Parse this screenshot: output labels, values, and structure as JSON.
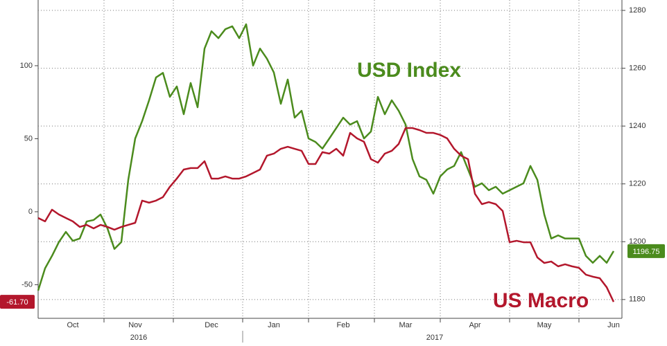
{
  "chart_data": {
    "type": "line",
    "categories": [
      null,
      null,
      null,
      null,
      null,
      "Oct",
      null,
      null,
      null,
      null,
      null,
      null,
      null,
      null,
      "Nov",
      null,
      null,
      null,
      null,
      null,
      null,
      null,
      null,
      null,
      null,
      "Dec",
      null,
      null,
      null,
      null,
      null,
      null,
      null,
      null,
      "Jan",
      null,
      null,
      null,
      null,
      null,
      null,
      null,
      null,
      null,
      "Feb",
      null,
      null,
      null,
      null,
      null,
      null,
      null,
      null,
      "Mar",
      null,
      null,
      null,
      null,
      null,
      null,
      null,
      null,
      null,
      "Apr",
      null,
      null,
      null,
      null,
      null,
      null,
      null,
      null,
      null,
      "May",
      null,
      null,
      null,
      null,
      null,
      null,
      null,
      null,
      null,
      "Jun"
    ],
    "years": [
      "2016",
      "2017"
    ],
    "series": [
      {
        "name": "USD Index",
        "color": "#4b8b1d",
        "axis": "y2",
        "values": [
          1183.1,
          1190.8,
          1195.1,
          1199.9,
          1203.4,
          1200.3,
          1201.1,
          1207.0,
          1207.5,
          1209.4,
          1204.6,
          1197.5,
          1199.9,
          1221.4,
          1235.7,
          1241.7,
          1248.9,
          1256.8,
          1258.4,
          1250.1,
          1253.7,
          1244.1,
          1254.9,
          1246.5,
          1266.8,
          1272.8,
          1270.4,
          1273.5,
          1274.5,
          1270.4,
          1275.2,
          1260.9,
          1266.8,
          1263.3,
          1258.5,
          1247.7,
          1256.1,
          1242.9,
          1245.3,
          1235.7,
          1234.5,
          1232.2,
          1235.7,
          1239.3,
          1242.9,
          1240.5,
          1241.7,
          1235.7,
          1238.1,
          1250.1,
          1244.1,
          1248.9,
          1245.3,
          1240.5,
          1228.6,
          1222.6,
          1221.4,
          1216.6,
          1222.6,
          1225.0,
          1226.2,
          1231.0,
          1225.0,
          1219.0,
          1220.2,
          1217.8,
          1219.0,
          1216.6,
          1217.8,
          1219.0,
          1220.2,
          1226.2,
          1221.4,
          1209.4,
          1201.1,
          1202.2,
          1201.1,
          1201.1,
          1201.1,
          1195.1,
          1192.7,
          1195.1,
          1192.7,
          1196.75
        ],
        "value_labels": [
          null,
          null,
          null,
          null,
          null,
          null,
          null,
          null,
          null,
          null,
          null,
          null,
          null,
          null,
          null,
          null,
          null,
          null,
          null,
          null,
          null,
          null,
          null,
          null,
          null,
          null,
          null,
          null,
          null,
          null,
          null,
          null,
          null,
          null,
          null,
          null,
          null,
          null,
          null,
          null,
          null,
          null,
          null,
          null,
          null,
          null,
          null,
          null,
          null,
          null,
          null,
          null,
          null,
          null,
          null,
          null,
          null,
          null,
          null,
          null,
          null,
          null,
          null,
          null,
          null,
          null,
          null,
          null,
          null,
          null,
          null,
          null,
          null,
          null,
          null,
          null,
          null,
          null,
          null,
          null,
          null,
          null,
          null,
          "1196.75"
        ]
      },
      {
        "name": "US Macro",
        "color": "#b3172c",
        "values": [
          -4.3,
          -6.6,
          1.4,
          -1.9,
          -4.3,
          -6.6,
          -10.4,
          -9.0,
          -11.4,
          -9.0,
          -10.4,
          -12.3,
          -10.4,
          -9.0,
          -7.6,
          7.6,
          6.2,
          7.6,
          10.0,
          17.1,
          22.7,
          28.9,
          29.9,
          29.9,
          34.6,
          22.7,
          22.7,
          24.2,
          22.7,
          22.7,
          24.2,
          26.5,
          28.9,
          38.4,
          39.8,
          43.1,
          44.5,
          43.1,
          41.7,
          32.7,
          32.7,
          40.8,
          39.8,
          43.1,
          38.4,
          54.0,
          50.2,
          47.9,
          36.0,
          33.6,
          39.8,
          41.7,
          46.4,
          57.3,
          57.3,
          55.9,
          54.0,
          54.0,
          52.6,
          50.2,
          43.1,
          38.4,
          36.0,
          12.3,
          5.2,
          6.6,
          5.2,
          0.5,
          -20.9,
          -19.9,
          -20.9,
          -20.9,
          -31.3,
          -35.1,
          -34.1,
          -37.4,
          -36.0,
          -37.4,
          -38.4,
          -43.1,
          -44.5,
          -45.5,
          -51.7,
          -61.7
        ],
        "value_labels": [
          null,
          null,
          null,
          null,
          null,
          null,
          null,
          null,
          null,
          null,
          null,
          null,
          null,
          null,
          null,
          null,
          null,
          null,
          null,
          null,
          null,
          null,
          null,
          null,
          null,
          null,
          null,
          null,
          null,
          null,
          null,
          null,
          null,
          null,
          null,
          null,
          null,
          null,
          null,
          null,
          null,
          null,
          null,
          null,
          null,
          null,
          null,
          null,
          null,
          null,
          null,
          null,
          null,
          null,
          null,
          null,
          null,
          null,
          null,
          null,
          null,
          null,
          null,
          null,
          null,
          null,
          null,
          null,
          null,
          null,
          null,
          null,
          null,
          null,
          null,
          null,
          null,
          null,
          null,
          null,
          null,
          null,
          null,
          "-61.70"
        ]
      }
    ],
    "ylim": [
      -73,
      145
    ],
    "yticks": [
      -50,
      0,
      50,
      100
    ],
    "y2lim": [
      1173.5,
      1283.6
    ],
    "y2ticks": [
      1180,
      1200,
      1220,
      1240,
      1260,
      1280
    ],
    "grid": true
  }
}
